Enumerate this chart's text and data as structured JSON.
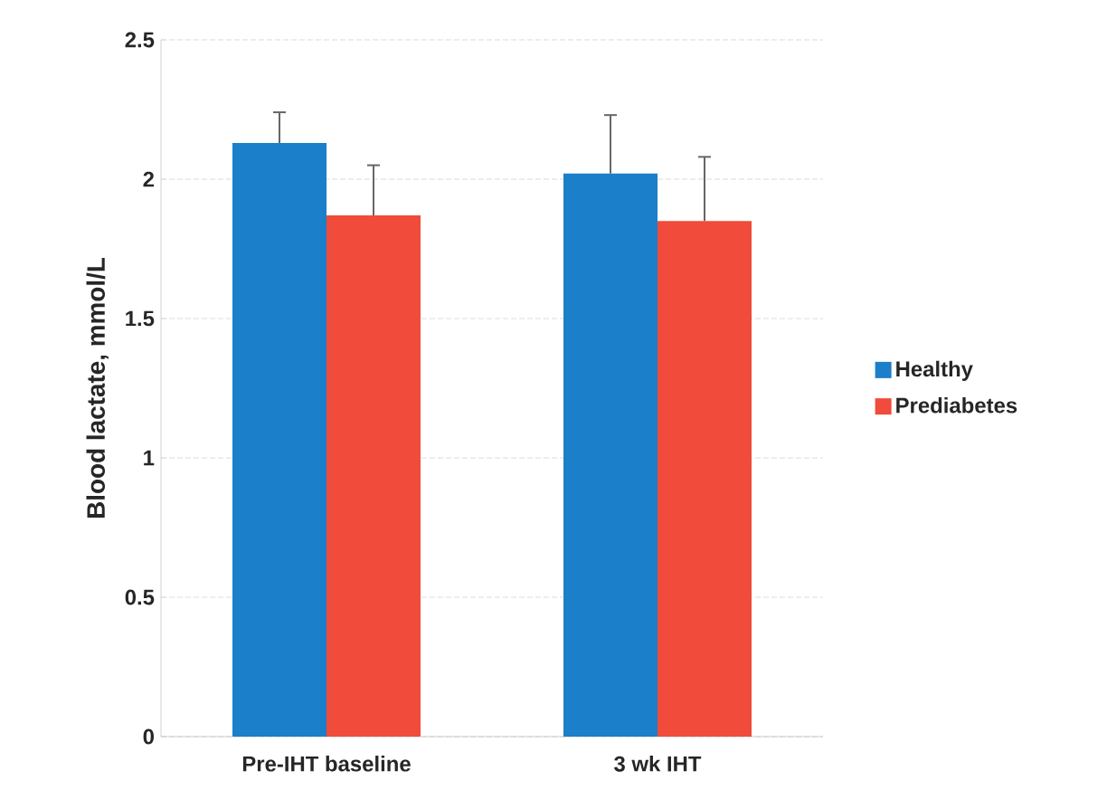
{
  "chart_data": {
    "type": "bar",
    "categories": [
      "Pre-IHT baseline",
      "3 wk IHT"
    ],
    "ylabel": "Blood lactate, mmol/L",
    "ylim": [
      0,
      2.5
    ],
    "yticks": [
      0,
      0.5,
      1,
      1.5,
      2,
      2.5
    ],
    "grid": "y",
    "legend": "right",
    "series": [
      {
        "name": "Healthy",
        "color": "#1b7fc9",
        "values": [
          2.13,
          2.02
        ],
        "errors": [
          [
            2.13,
            2.24
          ],
          [
            2.02,
            2.23
          ]
        ]
      },
      {
        "name": "Prediabetes",
        "color": "#f04b3b",
        "values": [
          1.87,
          1.85
        ],
        "errors": [
          [
            1.87,
            2.05
          ],
          [
            1.85,
            2.08
          ]
        ]
      }
    ]
  }
}
